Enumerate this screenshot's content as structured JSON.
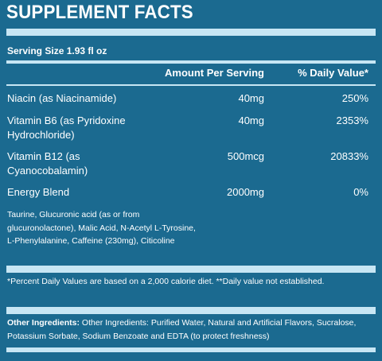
{
  "title": "SUPPLEMENT FACTS",
  "serving_size": "Serving Size 1.93 fl oz",
  "columns": {
    "amount": "Amount Per Serving",
    "daily_value": "% Daily Value*"
  },
  "rows": [
    {
      "name": "Niacin (as Niacinamide)",
      "amount": "40mg",
      "dv": "250%"
    },
    {
      "name": "Vitamin B6 (as Pyridoxine Hydrochloride)",
      "amount": "40mg",
      "dv": "2353%"
    },
    {
      "name": "Vitamin B12 (as Cyanocobalamin)",
      "amount": "500mcg",
      "dv": "20833%"
    },
    {
      "name": "Energy Blend",
      "amount": "2000mg",
      "dv": "0%"
    }
  ],
  "blend_ingredients": "Taurine, Glucuronic acid (as or from glucuronolactone), Malic Acid, N-Acetyl L-Tyrosine, L-Phenylalanine, Caffeine (230mg), Citicoline",
  "footnote": "*Percent Daily Values are based on a 2,000 calorie diet. **Daily value not established.",
  "other_ingredients": {
    "label": "Other Ingredients:",
    "text": " Other Ingredients: Purified Water, Natural and Artificial Flavors, Sucralose, Potassium Sorbate, Sodium Benzoate and EDTA (to protect freshness)"
  },
  "colors": {
    "background": "#1b6a90",
    "divider": "#c7e6f4",
    "text": "#ffffff"
  }
}
